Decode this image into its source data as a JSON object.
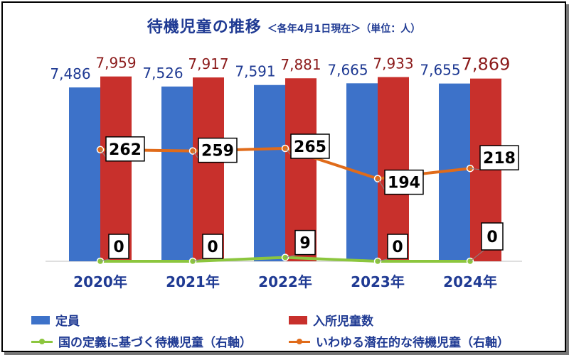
{
  "title": "待機児童の推移",
  "subtitle": "＜各年4月1日現在＞（単位：人）",
  "colors": {
    "capacity": "#3d72c9",
    "enrolled": "#c8302c",
    "national": "#8cc63e",
    "latent": "#e06b1a",
    "title": "#1f3a93",
    "enrolled_label": "#8b1a1a"
  },
  "legend": {
    "capacity": "定員",
    "enrolled": "入所児童数",
    "national": "国の定義に基づく待機児童（右軸）",
    "latent": "いわゆる潜在的な待機児童（右軸）"
  },
  "chart_data": {
    "type": "bar",
    "categories": [
      "2020年",
      "2021年",
      "2022年",
      "2023年",
      "2024年"
    ],
    "series": [
      {
        "name": "定員",
        "type": "bar",
        "axis": "left",
        "values": [
          7486,
          7526,
          7591,
          7665,
          7655
        ],
        "labels": [
          "7,486",
          "7,526",
          "7,591",
          "7,665",
          "7,655"
        ]
      },
      {
        "name": "入所児童数",
        "type": "bar",
        "axis": "left",
        "values": [
          7959,
          7917,
          7881,
          7933,
          7869
        ],
        "labels": [
          "7,959",
          "7,917",
          "7,881",
          "7,933",
          "7,869"
        ]
      },
      {
        "name": "国の定義に基づく待機児童（右軸）",
        "type": "line",
        "axis": "right",
        "values": [
          0,
          0,
          9,
          0,
          0
        ],
        "labels": [
          "0",
          "0",
          "9",
          "0",
          "0"
        ]
      },
      {
        "name": "いわゆる潜在的な待機児童（右軸）",
        "type": "line",
        "axis": "right",
        "values": [
          262,
          259,
          265,
          194,
          218
        ],
        "labels": [
          "262",
          "259",
          "265",
          "194",
          "218"
        ]
      }
    ],
    "ylim": [
      0,
      8500
    ],
    "y2lim": [
      0,
      500
    ],
    "grid": false,
    "legend_position": "bottom"
  }
}
